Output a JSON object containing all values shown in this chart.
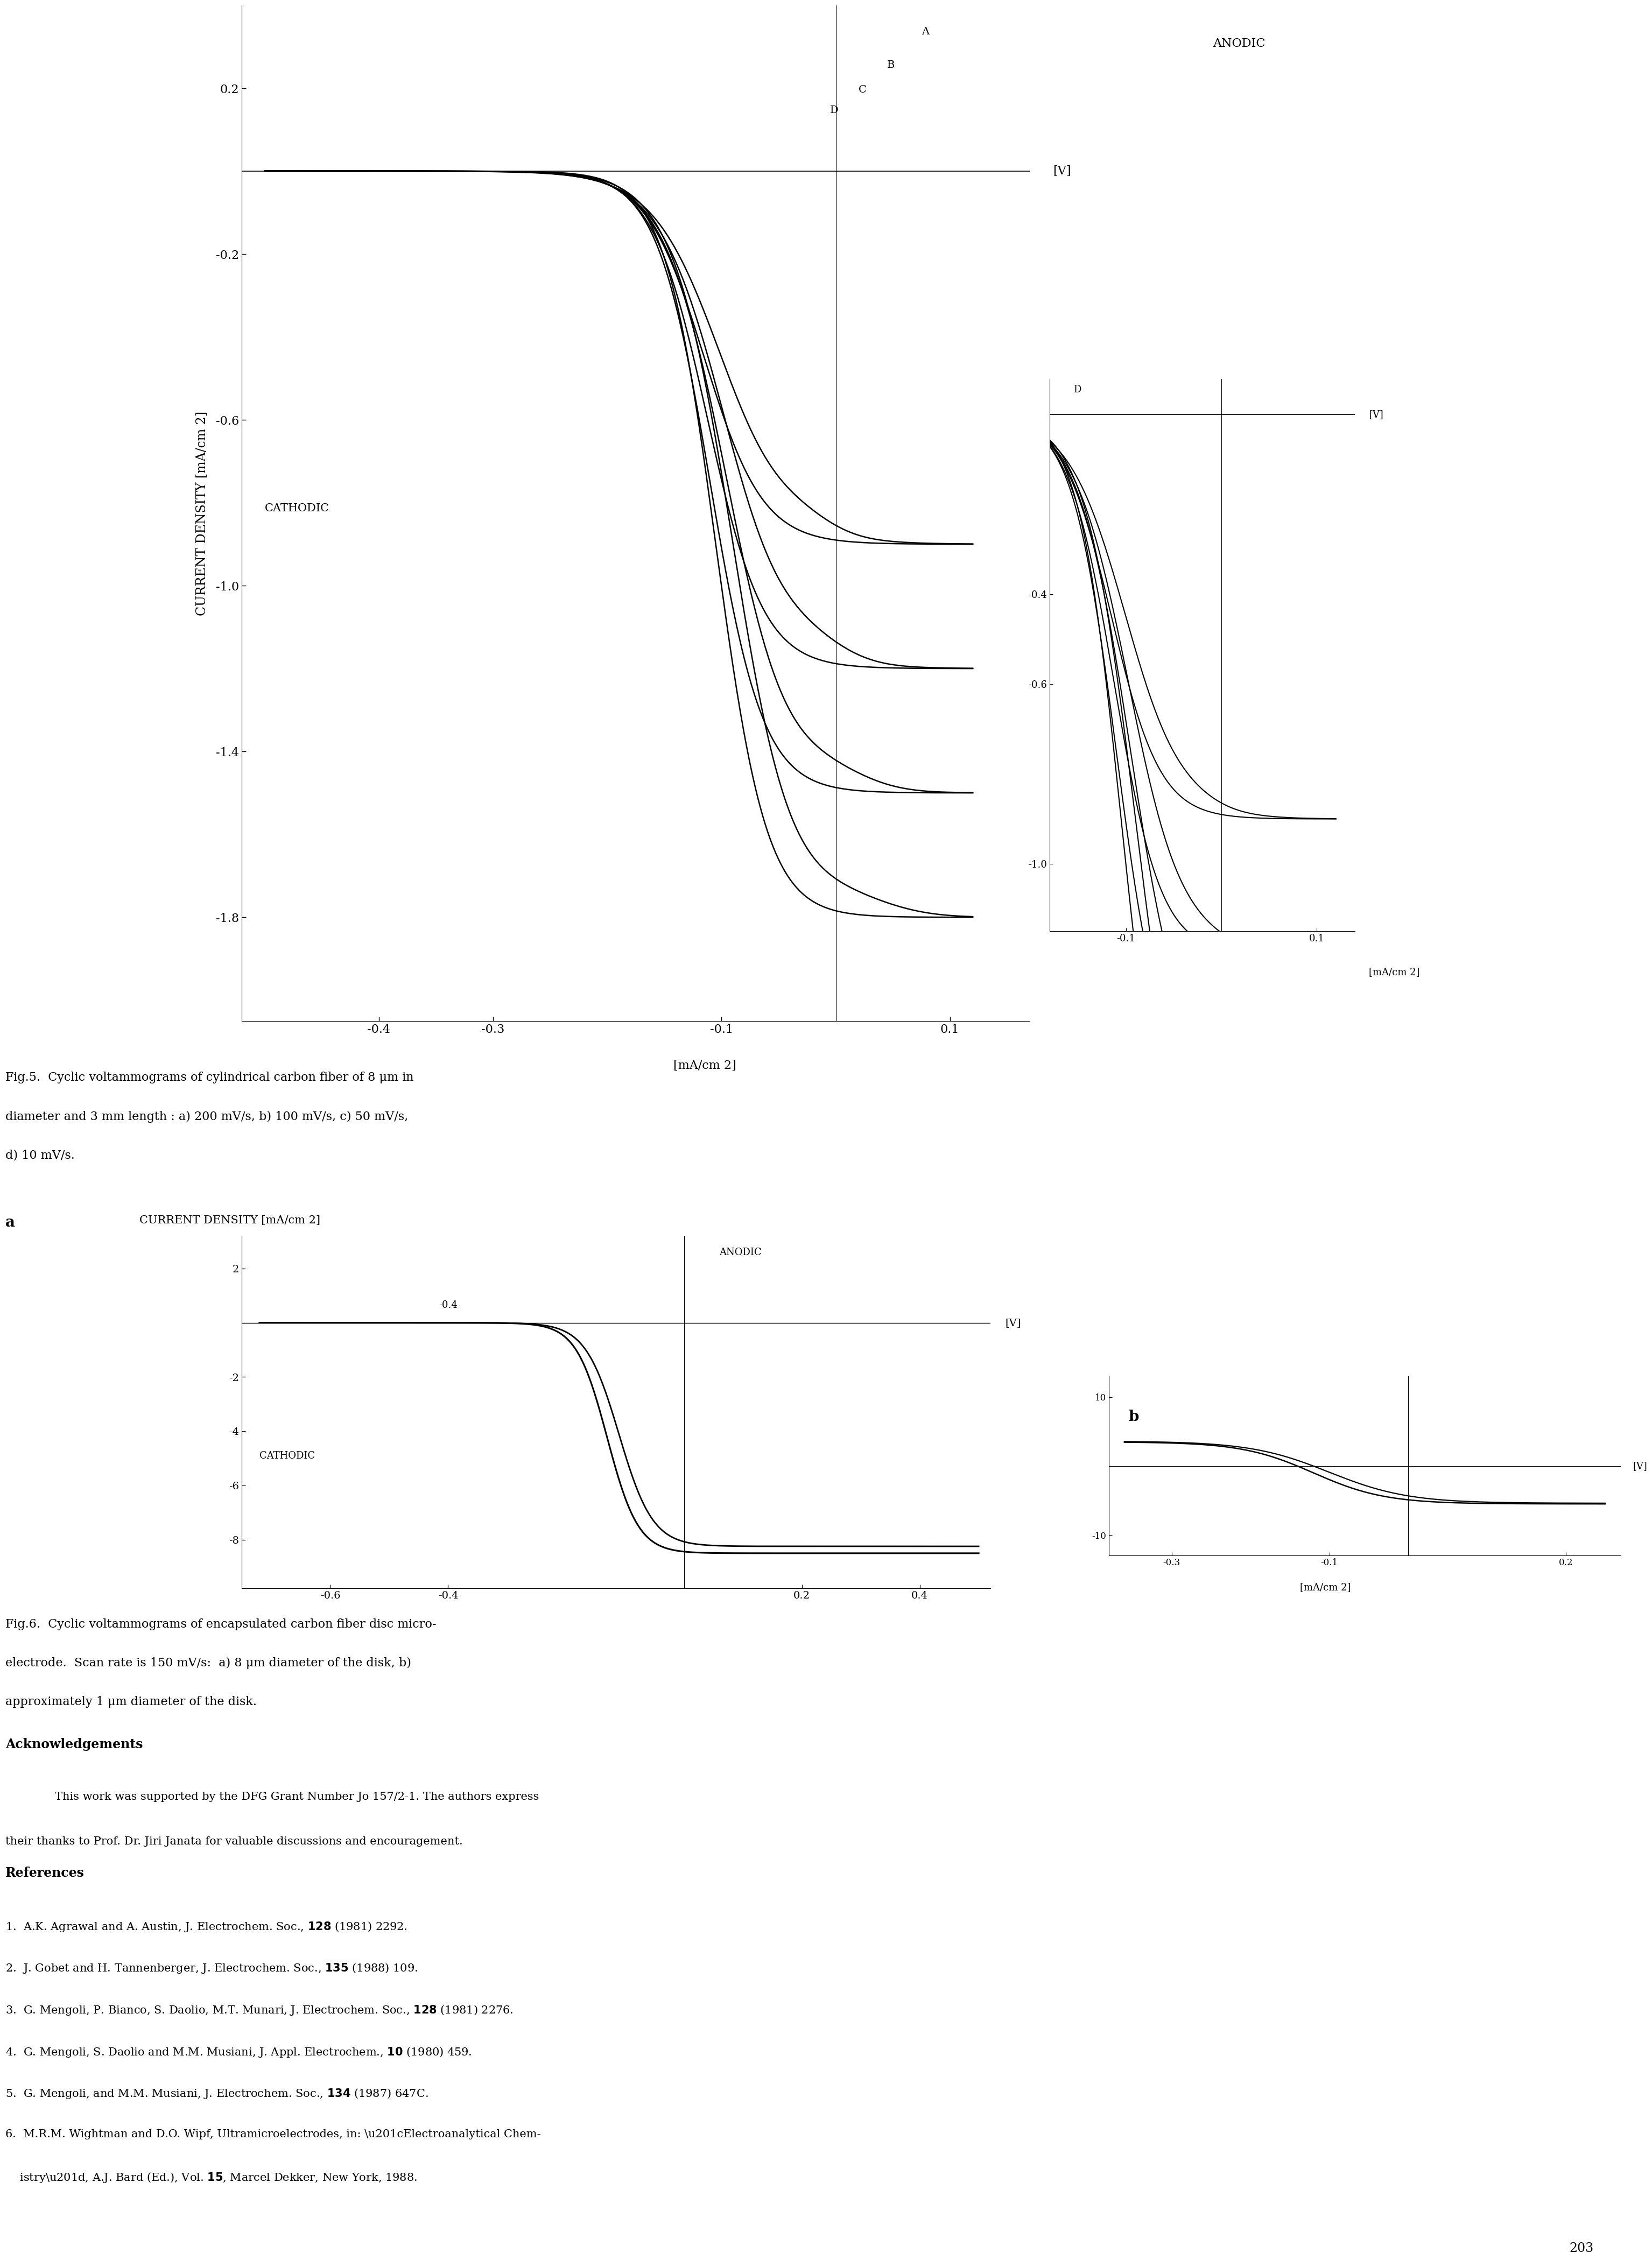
{
  "bg_color": "#ffffff",
  "fig_width": 36.6,
  "fig_height": 55.5,
  "fig5_caption_line1": "Fig.5.  Cyclic voltammograms of cylindrical carbon fiber of 8 μm in",
  "fig5_caption_line2": "diameter and 3 mm length : a) 200 mV/s, b) 100 mV/s, c) 50 mV/s,",
  "fig5_caption_line3": "d) 10 mV/s.",
  "fig6_caption_line1": "Fig.6.  Cyclic voltammograms of encapsulated carbon fiber disc micro-",
  "fig6_caption_line2": "electrode.  Scan rate is 150 mV/s:  a) 8 μm diameter of the disk, b)",
  "fig6_caption_line3": "approximately 1 μm diameter of the disk.",
  "ack_title": "Acknowledgements",
  "ack_line1": "    This work was supported by the DFG Grant Number Jo 157/2-1. The authors express",
  "ack_line2": "their thanks to Prof. Dr. Jiri Janata for valuable discussions and encouragement.",
  "ref_title": "References",
  "page_number": "203"
}
